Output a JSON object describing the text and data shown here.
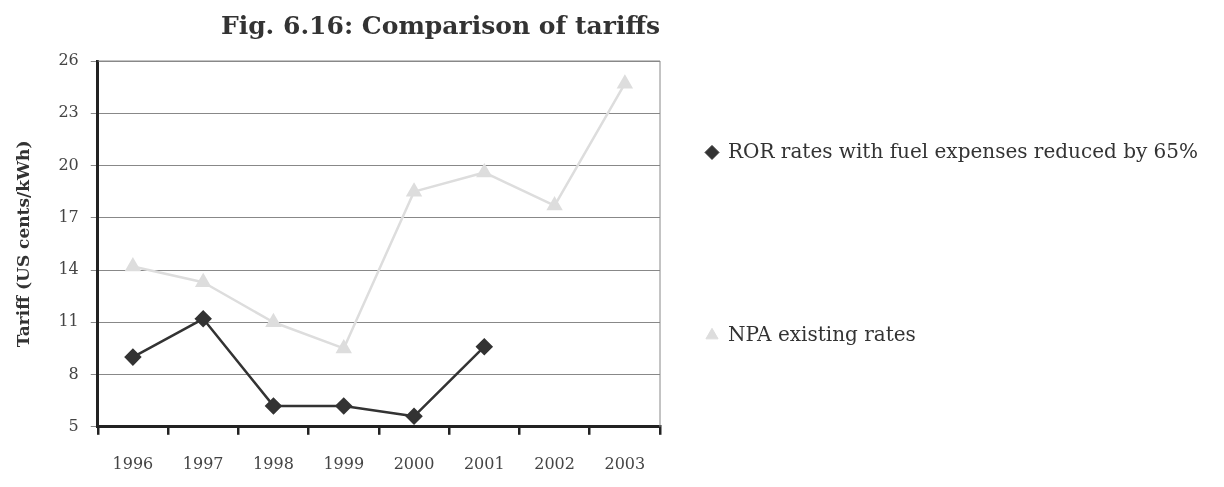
{
  "chart_data": {
    "type": "line",
    "title": "Fig. 6.16: Comparison of tariffs",
    "ylabel": "Tariff (US cents/kWh)",
    "categories": [
      "1996",
      "1997",
      "1998",
      "1999",
      "2000",
      "2001",
      "2002",
      "2003"
    ],
    "series": [
      {
        "name": "ROR rates with fuel expenses reduced by 65%",
        "color": "#333333",
        "marker": "diamond",
        "values": [
          9.0,
          11.2,
          6.2,
          6.2,
          5.6,
          9.6,
          null,
          null
        ]
      },
      {
        "name": "NPA existing rates",
        "color": "#dddddd",
        "marker": "triangle",
        "values": [
          14.2,
          13.3,
          11.0,
          9.5,
          18.5,
          19.6,
          17.7,
          24.7
        ]
      }
    ],
    "ylim": [
      5,
      26
    ],
    "yticks": [
      5,
      8,
      11,
      14,
      17,
      20,
      23,
      26
    ],
    "grid": "y",
    "legend": "right",
    "line_style": "solid"
  }
}
